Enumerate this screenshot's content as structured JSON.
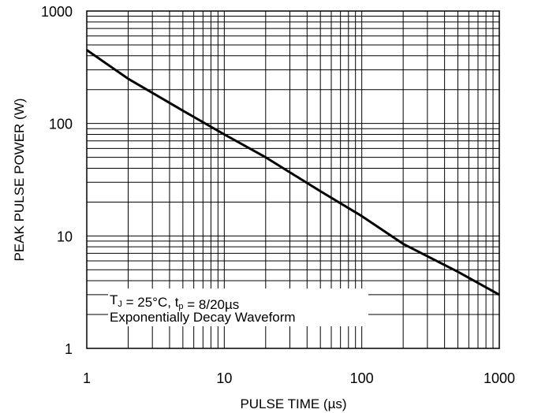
{
  "chart_data": {
    "type": "line",
    "title": "",
    "xlabel": "PULSE TIME (µs)",
    "ylabel": "PEAK PULSE POWER (W)",
    "x_scale": "log",
    "y_scale": "log",
    "xlim": [
      1,
      1000
    ],
    "ylim": [
      1,
      1000
    ],
    "x_ticks": [
      1,
      10,
      100,
      1000
    ],
    "x_tick_labels": [
      "1",
      "10",
      "100",
      "1000"
    ],
    "y_ticks": [
      1,
      10,
      100,
      1000
    ],
    "y_tick_labels": [
      "1",
      "10",
      "100",
      "1000"
    ],
    "grid": true,
    "series": [
      {
        "x": [
          1,
          2,
          5,
          10,
          20,
          50,
          100,
          200,
          500,
          1000
        ],
        "y": [
          450,
          250,
          130,
          80,
          50,
          25,
          15,
          8.5,
          4.8,
          3
        ]
      }
    ],
    "annotation": {
      "lines": [
        {
          "parts": [
            {
              "text": "T",
              "sub": false
            },
            {
              "text": "J",
              "sub": true
            },
            {
              "text": " = 25°C, t",
              "sub": false
            },
            {
              "text": "p",
              "sub": true
            },
            {
              "text": " = 8/20µs",
              "sub": false
            }
          ]
        },
        {
          "parts": [
            {
              "text": "Exponentially Decay Waveform",
              "sub": false
            }
          ]
        }
      ]
    },
    "colors": {
      "line": "#000000",
      "grid": "#000000",
      "background": "#ffffff"
    }
  }
}
